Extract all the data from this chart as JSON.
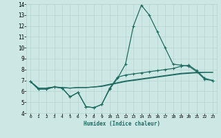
{
  "xlabel": "Humidex (Indice chaleur)",
  "background_color": "#cde8e4",
  "grid_color": "#b5d5cf",
  "line_color": "#1e6b62",
  "x_data": [
    0,
    1,
    2,
    3,
    4,
    5,
    6,
    7,
    8,
    9,
    10,
    11,
    12,
    13,
    14,
    15,
    16,
    17,
    18,
    19,
    20,
    21,
    22,
    23
  ],
  "series1": [
    6.9,
    6.2,
    6.2,
    6.4,
    6.3,
    5.5,
    5.9,
    4.6,
    4.5,
    4.8,
    6.2,
    7.2,
    8.5,
    12.0,
    13.9,
    13.0,
    11.5,
    10.0,
    8.5,
    8.4,
    8.3,
    7.8,
    7.1,
    7.0
  ],
  "series2": [
    6.9,
    6.2,
    6.2,
    6.4,
    6.3,
    5.5,
    5.9,
    4.6,
    4.5,
    4.8,
    6.3,
    7.3,
    7.5,
    7.6,
    7.7,
    7.8,
    7.9,
    8.0,
    8.1,
    8.3,
    8.4,
    7.9,
    7.2,
    7.0
  ],
  "series3": [
    6.9,
    6.3,
    6.3,
    6.4,
    6.35,
    6.3,
    6.35,
    6.35,
    6.4,
    6.45,
    6.6,
    6.75,
    6.9,
    7.0,
    7.1,
    7.2,
    7.3,
    7.4,
    7.5,
    7.6,
    7.65,
    7.7,
    7.75,
    7.75
  ],
  "series4": [
    6.9,
    6.3,
    6.3,
    6.4,
    6.35,
    6.3,
    6.35,
    6.35,
    6.4,
    6.5,
    6.65,
    6.8,
    6.95,
    7.05,
    7.15,
    7.25,
    7.35,
    7.45,
    7.55,
    7.65,
    7.7,
    7.75,
    7.75,
    7.75
  ],
  "ylim": [
    4,
    14
  ],
  "xlim": [
    -0.5,
    23.5
  ],
  "yticks": [
    4,
    5,
    6,
    7,
    8,
    9,
    10,
    11,
    12,
    13,
    14
  ],
  "xticks": [
    0,
    1,
    2,
    3,
    4,
    5,
    6,
    7,
    8,
    9,
    10,
    11,
    12,
    13,
    14,
    15,
    16,
    17,
    18,
    19,
    20,
    21,
    22,
    23
  ]
}
